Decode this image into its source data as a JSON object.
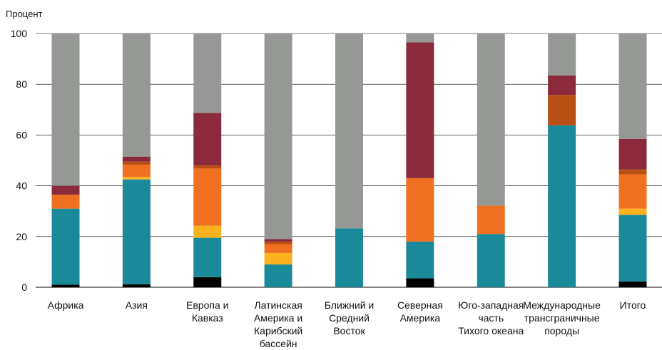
{
  "chart_data": {
    "type": "bar",
    "stacked": true,
    "title": "",
    "ylabel": "Процент",
    "ylim": [
      0,
      100
    ],
    "yticks": [
      0,
      20,
      40,
      60,
      80,
      100
    ],
    "grid": true,
    "categories": [
      [
        "Африка"
      ],
      [
        "Азия"
      ],
      [
        "Европа и",
        "Кавказ"
      ],
      [
        "Латинская",
        "Америка и",
        "Карибский",
        "бассейн"
      ],
      [
        "Ближний и",
        "Средний",
        "Восток"
      ],
      [
        "Северная",
        "Америка"
      ],
      [
        "Юго-западная",
        "часть",
        "Тихого океана"
      ],
      [
        "Международные",
        "трансграничные",
        "породы"
      ],
      [
        "Итого"
      ]
    ],
    "series": [
      {
        "color": "#000000",
        "values": [
          1,
          1.2,
          4,
          0,
          0,
          3.5,
          0,
          0,
          2.3
        ]
      },
      {
        "color": "#1a8a9a",
        "values": [
          30,
          41.3,
          15.5,
          9,
          23.2,
          14.5,
          21,
          63.8,
          26.2
        ]
      },
      {
        "color": "#fbb21f",
        "values": [
          0,
          1,
          4.8,
          4.5,
          0,
          0,
          0,
          0,
          2.5
        ]
      },
      {
        "color": "#f07022",
        "values": [
          5.5,
          4.8,
          22.5,
          3.5,
          0,
          25,
          11.2,
          0,
          13.5
        ]
      },
      {
        "color": "#b94f15",
        "values": [
          0,
          1.2,
          1.2,
          1,
          0,
          0,
          0,
          12,
          2
        ]
      },
      {
        "color": "#8b2a3c",
        "values": [
          3.5,
          2,
          20.7,
          1,
          0,
          53.5,
          0,
          7.7,
          12
        ]
      },
      {
        "color": "#969896",
        "values": [
          60,
          48.5,
          31.3,
          81,
          76.8,
          3.5,
          67.8,
          16.5,
          41.5
        ]
      }
    ]
  }
}
